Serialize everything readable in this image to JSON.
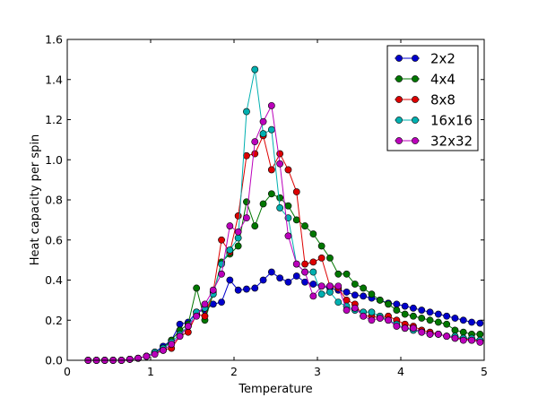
{
  "chart_data": {
    "type": "line",
    "title": "",
    "xlabel": "Temperature",
    "ylabel": "Heat capacity per spin",
    "xlim": [
      0,
      5
    ],
    "ylim": [
      0,
      1.6
    ],
    "xticks": [
      0,
      1,
      2,
      3,
      4,
      5
    ],
    "xtick_labels": [
      "0",
      "1",
      "2",
      "3",
      "4",
      "5"
    ],
    "yticks": [
      0,
      0.2,
      0.4,
      0.6,
      0.8,
      1.0,
      1.2,
      1.4,
      1.6
    ],
    "ytick_labels": [
      "0.0",
      "0.2",
      "0.4",
      "0.6",
      "0.8",
      "1.0",
      "1.2",
      "1.4",
      "1.6"
    ],
    "grid": false,
    "legend_position": "top-right",
    "x": [
      0.25,
      0.35,
      0.45,
      0.55,
      0.65,
      0.75,
      0.85,
      0.95,
      1.05,
      1.15,
      1.25,
      1.35,
      1.45,
      1.55,
      1.65,
      1.75,
      1.85,
      1.95,
      2.05,
      2.15,
      2.25,
      2.35,
      2.45,
      2.55,
      2.65,
      2.75,
      2.85,
      2.95,
      3.05,
      3.15,
      3.25,
      3.35,
      3.45,
      3.55,
      3.65,
      3.75,
      3.85,
      3.95,
      4.05,
      4.15,
      4.25,
      4.35,
      4.45,
      4.55,
      4.65,
      4.75,
      4.85,
      4.95
    ],
    "series": [
      {
        "name": "2x2",
        "color": "#0000cc",
        "values": [
          0.0,
          0.0,
          0.0,
          0.0,
          0.0,
          0.005,
          0.01,
          0.02,
          0.04,
          0.07,
          0.1,
          0.18,
          0.19,
          0.24,
          0.25,
          0.28,
          0.29,
          0.4,
          0.35,
          0.355,
          0.36,
          0.4,
          0.44,
          0.41,
          0.39,
          0.42,
          0.39,
          0.38,
          0.37,
          0.36,
          0.35,
          0.34,
          0.325,
          0.32,
          0.31,
          0.3,
          0.285,
          0.28,
          0.27,
          0.26,
          0.25,
          0.24,
          0.23,
          0.22,
          0.21,
          0.2,
          0.19,
          0.185
        ]
      },
      {
        "name": "4x4",
        "color": "#007700",
        "values": [
          0.0,
          0.0,
          0.0,
          0.0,
          0.0,
          0.005,
          0.01,
          0.02,
          0.04,
          0.06,
          0.1,
          0.15,
          0.18,
          0.36,
          0.2,
          0.33,
          0.49,
          0.53,
          0.57,
          0.79,
          0.67,
          0.78,
          0.83,
          0.81,
          0.77,
          0.7,
          0.67,
          0.63,
          0.57,
          0.51,
          0.43,
          0.43,
          0.38,
          0.36,
          0.33,
          0.3,
          0.28,
          0.25,
          0.23,
          0.22,
          0.21,
          0.2,
          0.19,
          0.18,
          0.15,
          0.14,
          0.13,
          0.13
        ]
      },
      {
        "name": "8x8",
        "color": "#dd0000",
        "values": [
          0.0,
          0.0,
          0.0,
          0.0,
          0.0,
          0.005,
          0.01,
          0.02,
          0.04,
          0.05,
          0.06,
          0.12,
          0.14,
          0.23,
          0.22,
          0.34,
          0.6,
          0.54,
          0.72,
          1.02,
          1.03,
          1.12,
          0.95,
          1.03,
          0.95,
          0.84,
          0.48,
          0.49,
          0.51,
          0.37,
          0.36,
          0.3,
          0.28,
          0.22,
          0.22,
          0.21,
          0.22,
          0.2,
          0.18,
          0.17,
          0.15,
          0.14,
          0.13,
          0.12,
          0.11,
          0.11,
          0.1,
          0.1
        ]
      },
      {
        "name": "16x16",
        "color": "#00b0b0",
        "values": [
          0.0,
          0.0,
          0.0,
          0.0,
          0.0,
          0.005,
          0.01,
          0.02,
          0.04,
          0.06,
          0.09,
          0.13,
          0.17,
          0.24,
          0.26,
          0.33,
          0.48,
          0.55,
          0.61,
          1.24,
          1.45,
          1.13,
          1.15,
          0.76,
          0.71,
          0.48,
          0.44,
          0.44,
          0.33,
          0.34,
          0.29,
          0.27,
          0.25,
          0.24,
          0.24,
          0.22,
          0.2,
          0.18,
          0.16,
          0.15,
          0.14,
          0.13,
          0.13,
          0.12,
          0.12,
          0.11,
          0.11,
          0.1
        ]
      },
      {
        "name": "32x32",
        "color": "#bb00bb",
        "values": [
          0.0,
          0.0,
          0.0,
          0.0,
          0.0,
          0.005,
          0.01,
          0.02,
          0.03,
          0.05,
          0.08,
          0.12,
          0.17,
          0.22,
          0.28,
          0.35,
          0.43,
          0.67,
          0.64,
          0.71,
          1.09,
          1.19,
          1.27,
          0.98,
          0.62,
          0.48,
          0.44,
          0.32,
          0.37,
          0.37,
          0.37,
          0.25,
          0.26,
          0.22,
          0.2,
          0.21,
          0.2,
          0.17,
          0.16,
          0.16,
          0.14,
          0.13,
          0.13,
          0.12,
          0.11,
          0.1,
          0.1,
          0.09
        ]
      }
    ]
  }
}
